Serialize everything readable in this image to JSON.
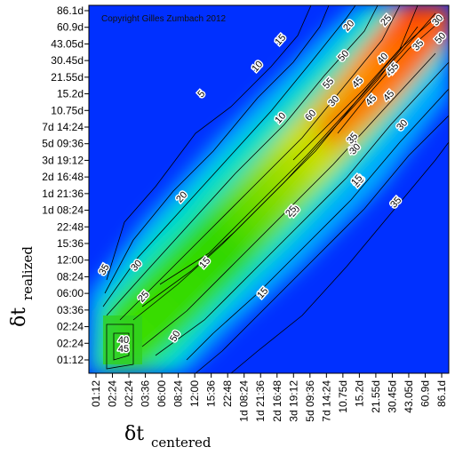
{
  "chart_data": {
    "type": "heatmap",
    "title": "",
    "copyright": "Copyright Gilles Zumbach 2012",
    "xlabel": {
      "symbol": "δt",
      "subscript": "centered"
    },
    "ylabel": {
      "symbol": "δt",
      "subscript": "realized"
    },
    "x_ticks": [
      "01:12",
      "02:24",
      "02:24",
      "03:36",
      "06:00",
      "08:24",
      "12:00",
      "15:36",
      "22:48",
      "1d 08:24",
      "1d 21:36",
      "2d 16:48",
      "3d 19:12",
      "5d 09:36",
      "7d 14:24",
      "10.75d",
      "15.2d",
      "21.55d",
      "30.45d",
      "43.05d",
      "60.9d",
      "86.1d"
    ],
    "y_ticks": [
      "01:12",
      "02:24",
      "02:24",
      "03:36",
      "06:00",
      "08:24",
      "12:00",
      "15:36",
      "22:48",
      "1d 08:24",
      "1d 21:36",
      "2d 16:48",
      "3d 19:12",
      "5d 09:36",
      "7d 14:24",
      "10.75d",
      "15.2d",
      "21.55d",
      "30.45d",
      "43.05d",
      "60.9d",
      "86.1d"
    ],
    "contour_levels": [
      5,
      10,
      15,
      20,
      25,
      30,
      35,
      40,
      45,
      50,
      55,
      60
    ],
    "contour_labels": [
      "5",
      "10",
      "15",
      "20",
      "25",
      "30",
      "35",
      "40",
      "45",
      "50",
      "55",
      "60",
      "5",
      "10",
      "15",
      "20",
      "25",
      "30",
      "35",
      "40",
      "45",
      "50",
      "15",
      "20",
      "25",
      "30",
      "35",
      "40",
      "45",
      "50",
      "40",
      "30",
      "20",
      "45",
      "35",
      "30",
      "25",
      "15",
      "55"
    ],
    "colorscale": [
      "#0000c8",
      "#0050ff",
      "#00b4ff",
      "#00e6d2",
      "#00d25a",
      "#32dc00",
      "#a0e600",
      "#e6d200",
      "#ff8c00",
      "#ff3c00",
      "#e60000"
    ],
    "grid": false,
    "legend": "none"
  }
}
